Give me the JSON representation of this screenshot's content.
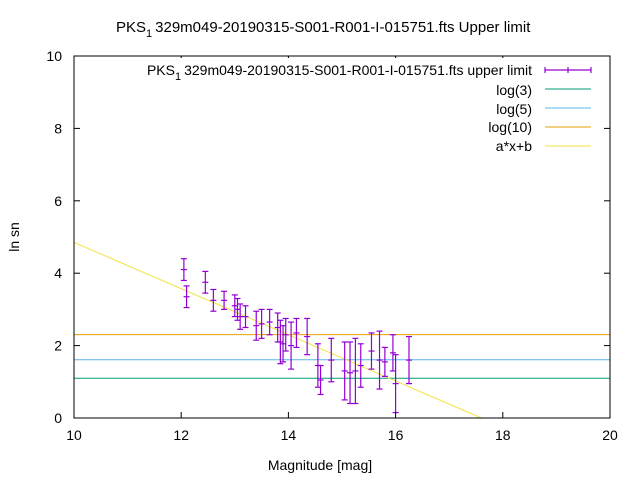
{
  "chart_data": {
    "type": "scatter",
    "title": "PKS_1329m049-20190315-S001-R001-I-015751.fts Upper limit",
    "title_prefix": "PKS",
    "title_subscript": "1",
    "title_suffix": "329m049-20190315-S001-R001-I-015751.fts Upper limit",
    "xlabel": "Magnitude [mag]",
    "ylabel": "ln sn",
    "xlim": [
      10,
      20
    ],
    "ylim": [
      0,
      10
    ],
    "xticks": [
      "10",
      "12",
      "14",
      "16",
      "18",
      "20"
    ],
    "yticks": [
      "0",
      "2",
      "4",
      "6",
      "8",
      "10"
    ],
    "grid": false,
    "legend_position": "top-right",
    "colors": {
      "points": "#9400d3",
      "log3": "#009e73",
      "log5": "#56b4e9",
      "log10": "#e69f00",
      "fit": "#f0e442"
    },
    "series": [
      {
        "name": "PKS_1329m049-20190315-S001-R001-I-015751.fts upper limit",
        "legend_prefix": "PKS",
        "legend_subscript": "1",
        "legend_suffix": "329m049-20190315-S001-R001-I-015751.fts upper limit",
        "kind": "errorbar",
        "x": [
          12.05,
          12.1,
          12.45,
          12.6,
          12.8,
          13.0,
          13.05,
          13.1,
          13.2,
          13.4,
          13.5,
          13.65,
          13.8,
          13.85,
          13.9,
          13.95,
          14.05,
          14.15,
          14.35,
          14.55,
          14.6,
          14.8,
          15.05,
          15.15,
          15.25,
          15.35,
          15.55,
          15.7,
          15.8,
          15.95,
          16.0,
          16.25
        ],
        "y": [
          4.1,
          3.35,
          3.75,
          3.25,
          3.25,
          3.1,
          3.0,
          2.8,
          2.8,
          2.55,
          2.6,
          2.65,
          2.5,
          2.1,
          2.05,
          2.3,
          2.0,
          2.35,
          2.25,
          1.45,
          1.05,
          1.6,
          1.3,
          1.25,
          1.3,
          1.45,
          1.85,
          1.6,
          1.55,
          1.8,
          0.95,
          1.6
        ],
        "yerr": [
          0.3,
          0.3,
          0.3,
          0.3,
          0.25,
          0.3,
          0.3,
          0.35,
          0.3,
          0.4,
          0.4,
          0.35,
          0.4,
          0.6,
          0.5,
          0.45,
          0.65,
          0.4,
          0.5,
          0.6,
          0.4,
          0.6,
          0.8,
          0.85,
          0.9,
          0.6,
          0.5,
          0.8,
          0.4,
          0.5,
          0.8,
          0.65
        ]
      },
      {
        "name": "log(3)",
        "kind": "hline",
        "y": 1.0986
      },
      {
        "name": "log(5)",
        "kind": "hline",
        "y": 1.6094
      },
      {
        "name": "log(10)",
        "kind": "hline",
        "y": 2.3026
      },
      {
        "name": "a*x+b",
        "kind": "line",
        "x": [
          10,
          17.6
        ],
        "y": [
          4.85,
          0
        ]
      }
    ]
  }
}
